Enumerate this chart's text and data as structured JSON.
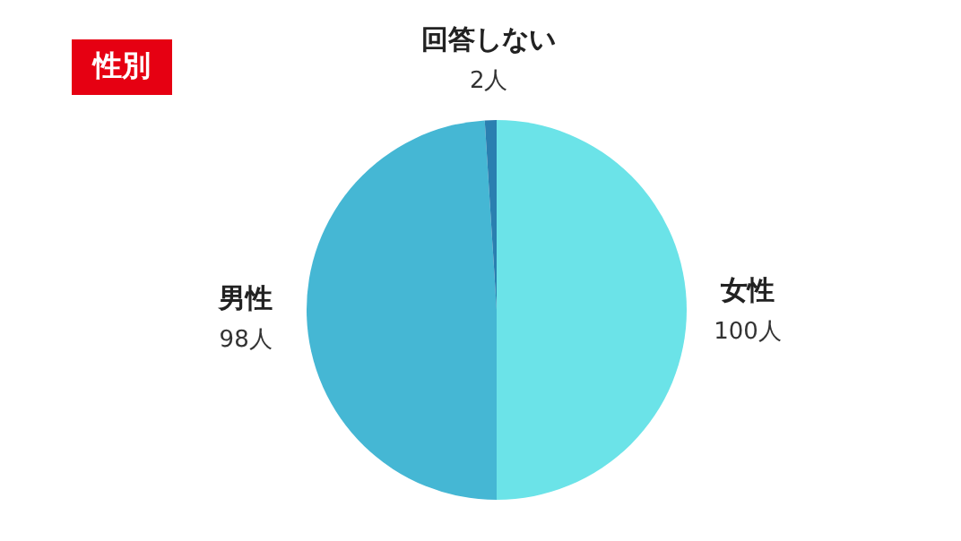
{
  "chart_data": {
    "type": "pie",
    "title": "性別",
    "categories": [
      "女性",
      "男性",
      "回答しない"
    ],
    "values": [
      100,
      98,
      2
    ],
    "value_labels": [
      "100人",
      "98人",
      "2人"
    ],
    "colors": [
      "#6be3e8",
      "#45b7d4",
      "#2a7fb0"
    ]
  }
}
